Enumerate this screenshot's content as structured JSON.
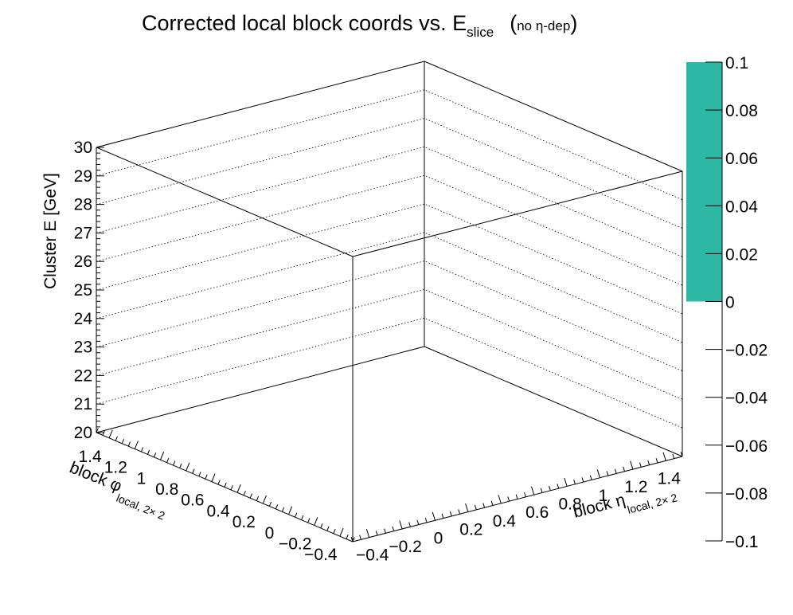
{
  "chart_data": {
    "type": "lego",
    "title": {
      "main": "Corrected local block coords vs. E",
      "sub": "slice",
      "tail_open": "(",
      "tail_text": "no η-dep",
      "tail_close": ")"
    },
    "axes": {
      "x": {
        "label_main": "block η",
        "label_sub": "local, 2× 2",
        "ticks": [
          "−0.4",
          "−0.2",
          "0",
          "0.2",
          "0.4",
          "0.6",
          "0.8",
          "1",
          "1.2",
          "1.4"
        ],
        "range": [
          -0.5,
          1.5
        ]
      },
      "y": {
        "label_main": "block φ",
        "label_sub": "local, 2× 2",
        "ticks": [
          "−0.4",
          "−0.2",
          "0",
          "0.2",
          "0.4",
          "0.6",
          "0.8",
          "1",
          "1.2",
          "1.4"
        ],
        "range": [
          -0.5,
          1.5
        ]
      },
      "z": {
        "label": "Cluster E  [GeV]",
        "ticks": [
          "20",
          "21",
          "22",
          "23",
          "24",
          "25",
          "26",
          "27",
          "28",
          "29",
          "30"
        ],
        "range": [
          20,
          30
        ]
      }
    },
    "colorbar": {
      "ticks": [
        "−0.1",
        "−0.08",
        "−0.06",
        "−0.04",
        "−0.02",
        "0",
        "0.02",
        "0.04",
        "0.06",
        "0.08",
        "0.1"
      ],
      "range": [
        -0.1,
        0.1
      ],
      "filled_range": [
        0,
        0.1
      ],
      "fill_color": "#2db8a6"
    },
    "values": [],
    "grid": true
  }
}
